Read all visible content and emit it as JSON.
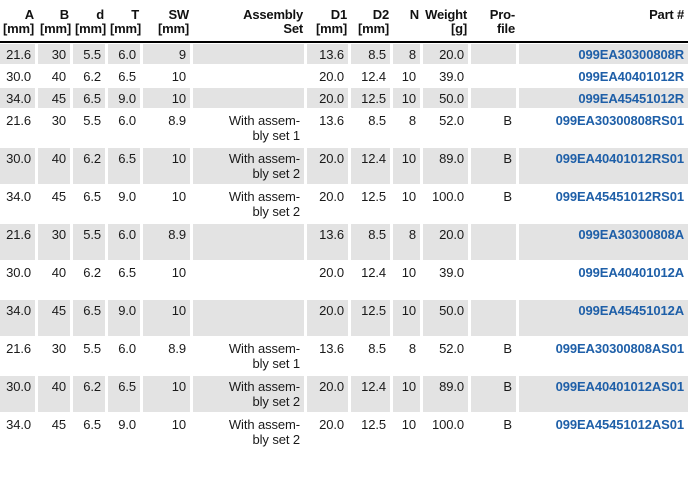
{
  "chart_data": {
    "type": "table",
    "columns": [
      {
        "id": "a",
        "label": "A\n[mm]"
      },
      {
        "id": "b",
        "label": "B\n[mm]"
      },
      {
        "id": "d",
        "label": "d\n[mm]"
      },
      {
        "id": "t",
        "label": "T\n[mm]"
      },
      {
        "id": "sw",
        "label": "SW\n[mm]"
      },
      {
        "id": "assembly",
        "label": "Assembly\nSet"
      },
      {
        "id": "d1",
        "label": "D1\n[mm]"
      },
      {
        "id": "d2",
        "label": "D2\n[mm]"
      },
      {
        "id": "n",
        "label": "N"
      },
      {
        "id": "weight",
        "label": "Weight\n[g]"
      },
      {
        "id": "profile",
        "label": "Pro-\nfile"
      },
      {
        "id": "part",
        "label": "Part #"
      }
    ],
    "rows": [
      {
        "a": "21.6",
        "b": "30",
        "d": "5.5",
        "t": "6.0",
        "sw": "9",
        "assembly": "",
        "d1": "13.6",
        "d2": "8.5",
        "n": "8",
        "weight": "20.0",
        "profile": "",
        "part": "099EA30300808R"
      },
      {
        "a": "30.0",
        "b": "40",
        "d": "6.2",
        "t": "6.5",
        "sw": "10",
        "assembly": "",
        "d1": "20.0",
        "d2": "12.4",
        "n": "10",
        "weight": "39.0",
        "profile": "",
        "part": "099EA40401012R"
      },
      {
        "a": "34.0",
        "b": "45",
        "d": "6.5",
        "t": "9.0",
        "sw": "10",
        "assembly": "",
        "d1": "20.0",
        "d2": "12.5",
        "n": "10",
        "weight": "50.0",
        "profile": "",
        "part": "099EA45451012R"
      },
      {
        "a": "21.6",
        "b": "30",
        "d": "5.5",
        "t": "6.0",
        "sw": "8.9",
        "assembly": "With assem-\nbly set 1",
        "d1": "13.6",
        "d2": "8.5",
        "n": "8",
        "weight": "52.0",
        "profile": "B",
        "part": "099EA30300808RS01"
      },
      {
        "a": "30.0",
        "b": "40",
        "d": "6.2",
        "t": "6.5",
        "sw": "10",
        "assembly": "With assem-\nbly set 2",
        "d1": "20.0",
        "d2": "12.4",
        "n": "10",
        "weight": "89.0",
        "profile": "B",
        "part": "099EA40401012RS01"
      },
      {
        "a": "34.0",
        "b": "45",
        "d": "6.5",
        "t": "9.0",
        "sw": "10",
        "assembly": "With assem-\nbly set 2",
        "d1": "20.0",
        "d2": "12.5",
        "n": "10",
        "weight": "100.0",
        "profile": "B",
        "part": "099EA45451012RS01"
      },
      {
        "a": "21.6",
        "b": "30",
        "d": "5.5",
        "t": "6.0",
        "sw": "8.9",
        "assembly": "",
        "d1": "13.6",
        "d2": "8.5",
        "n": "8",
        "weight": "20.0",
        "profile": "",
        "part": "099EA30300808A"
      },
      {
        "a": "30.0",
        "b": "40",
        "d": "6.2",
        "t": "6.5",
        "sw": "10",
        "assembly": "",
        "d1": "20.0",
        "d2": "12.4",
        "n": "10",
        "weight": "39.0",
        "profile": "",
        "part": "099EA40401012A"
      },
      {
        "a": "34.0",
        "b": "45",
        "d": "6.5",
        "t": "9.0",
        "sw": "10",
        "assembly": "",
        "d1": "20.0",
        "d2": "12.5",
        "n": "10",
        "weight": "50.0",
        "profile": "",
        "part": "099EA45451012A"
      },
      {
        "a": "21.6",
        "b": "30",
        "d": "5.5",
        "t": "6.0",
        "sw": "8.9",
        "assembly": "With assem-\nbly set 1",
        "d1": "13.6",
        "d2": "8.5",
        "n": "8",
        "weight": "52.0",
        "profile": "B",
        "part": "099EA30300808AS01"
      },
      {
        "a": "30.0",
        "b": "40",
        "d": "6.2",
        "t": "6.5",
        "sw": "10",
        "assembly": "With assem-\nbly set 2",
        "d1": "20.0",
        "d2": "12.4",
        "n": "10",
        "weight": "89.0",
        "profile": "B",
        "part": "099EA40401012AS01"
      },
      {
        "a": "34.0",
        "b": "45",
        "d": "6.5",
        "t": "9.0",
        "sw": "10",
        "assembly": "With assem-\nbly set 2",
        "d1": "20.0",
        "d2": "12.5",
        "n": "10",
        "weight": "100.0",
        "profile": "B",
        "part": "099EA45451012AS01"
      }
    ]
  },
  "colors": {
    "stripe": "#e3e3e3",
    "partlink": "#1e5fa8",
    "rule": "#000000",
    "text": "#1a1a1a"
  }
}
